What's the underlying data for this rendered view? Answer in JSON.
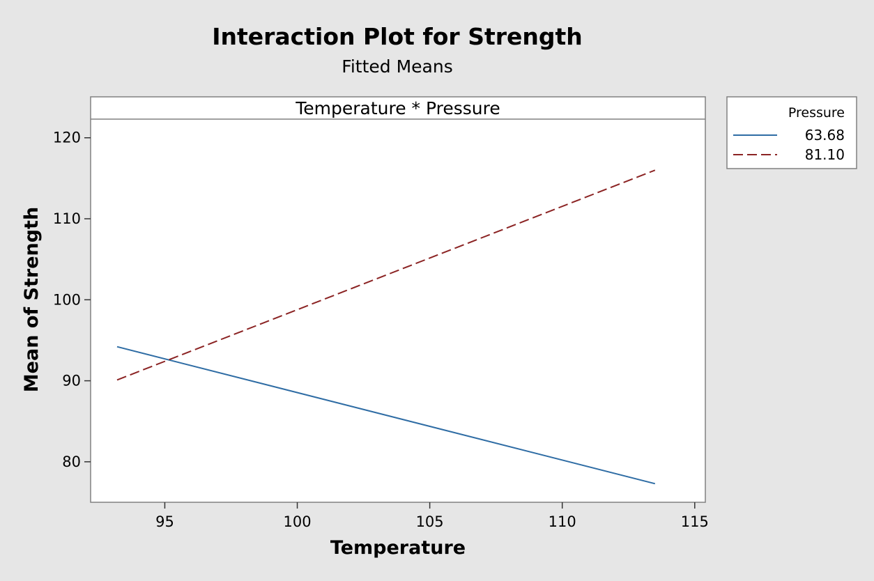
{
  "chart_data": {
    "type": "line",
    "title": "Interaction Plot for Strength",
    "subtitle": "Fitted Means",
    "panel_label": "Temperature * Pressure",
    "xlabel": "Temperature",
    "ylabel": "Mean of Strength",
    "xlim": [
      92.2,
      115.4
    ],
    "ylim": [
      75,
      122.3
    ],
    "x_ticks": [
      95,
      100,
      105,
      110,
      115
    ],
    "y_ticks": [
      80,
      90,
      100,
      110,
      120
    ],
    "legend": {
      "title": "Pressure",
      "placement": "right"
    },
    "series": [
      {
        "name": "63.68",
        "color": "#2e6ca4",
        "style": "solid",
        "x": [
          93.2,
          113.5
        ],
        "y": [
          94.2,
          77.3
        ]
      },
      {
        "name": "81.10",
        "color": "#8b2323",
        "style": "dashed",
        "x": [
          93.2,
          113.5
        ],
        "y": [
          90.1,
          116.0
        ]
      }
    ]
  }
}
